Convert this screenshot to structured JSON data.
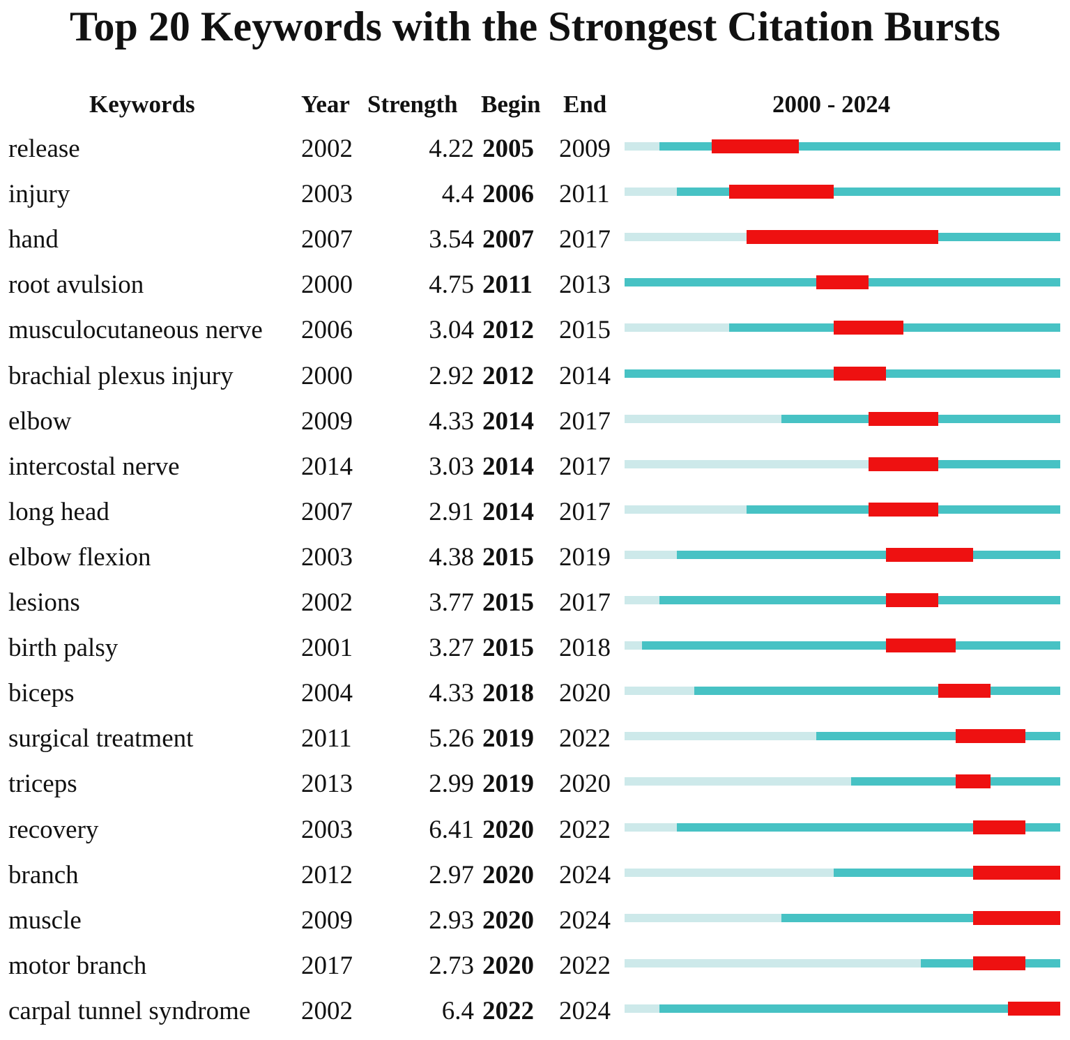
{
  "chart_data": {
    "type": "table",
    "title": "Top 20 Keywords with the Strongest Citation Bursts",
    "columns": [
      "Keywords",
      "Year",
      "Strength",
      "Begin",
      "End",
      "2000 - 2024"
    ],
    "timeline_range": [
      2000,
      2024
    ],
    "colors": {
      "before": "#cde9ea",
      "active": "#47c2c4",
      "burst": "#ee1111"
    },
    "rows": [
      {
        "keyword": "release",
        "year": 2002,
        "strength": "4.22",
        "begin": 2005,
        "end": 2009
      },
      {
        "keyword": "injury",
        "year": 2003,
        "strength": "4.4",
        "begin": 2006,
        "end": 2011
      },
      {
        "keyword": "hand",
        "year": 2007,
        "strength": "3.54",
        "begin": 2007,
        "end": 2017
      },
      {
        "keyword": "root avulsion",
        "year": 2000,
        "strength": "4.75",
        "begin": 2011,
        "end": 2013
      },
      {
        "keyword": "musculocutaneous nerve",
        "year": 2006,
        "strength": "3.04",
        "begin": 2012,
        "end": 2015
      },
      {
        "keyword": "brachial plexus injury",
        "year": 2000,
        "strength": "2.92",
        "begin": 2012,
        "end": 2014
      },
      {
        "keyword": "elbow",
        "year": 2009,
        "strength": "4.33",
        "begin": 2014,
        "end": 2017
      },
      {
        "keyword": "intercostal nerve",
        "year": 2014,
        "strength": "3.03",
        "begin": 2014,
        "end": 2017
      },
      {
        "keyword": "long head",
        "year": 2007,
        "strength": "2.91",
        "begin": 2014,
        "end": 2017
      },
      {
        "keyword": "elbow flexion",
        "year": 2003,
        "strength": "4.38",
        "begin": 2015,
        "end": 2019
      },
      {
        "keyword": "lesions",
        "year": 2002,
        "strength": "3.77",
        "begin": 2015,
        "end": 2017
      },
      {
        "keyword": "birth palsy",
        "year": 2001,
        "strength": "3.27",
        "begin": 2015,
        "end": 2018
      },
      {
        "keyword": "biceps",
        "year": 2004,
        "strength": "4.33",
        "begin": 2018,
        "end": 2020
      },
      {
        "keyword": "surgical treatment",
        "year": 2011,
        "strength": "5.26",
        "begin": 2019,
        "end": 2022
      },
      {
        "keyword": "triceps",
        "year": 2013,
        "strength": "2.99",
        "begin": 2019,
        "end": 2020
      },
      {
        "keyword": "recovery",
        "year": 2003,
        "strength": "6.41",
        "begin": 2020,
        "end": 2022
      },
      {
        "keyword": "branch",
        "year": 2012,
        "strength": "2.97",
        "begin": 2020,
        "end": 2024
      },
      {
        "keyword": "muscle",
        "year": 2009,
        "strength": "2.93",
        "begin": 2020,
        "end": 2024
      },
      {
        "keyword": "motor branch",
        "year": 2017,
        "strength": "2.73",
        "begin": 2020,
        "end": 2022
      },
      {
        "keyword": "carpal tunnel syndrome",
        "year": 2002,
        "strength": "6.4",
        "begin": 2022,
        "end": 2024
      }
    ]
  }
}
